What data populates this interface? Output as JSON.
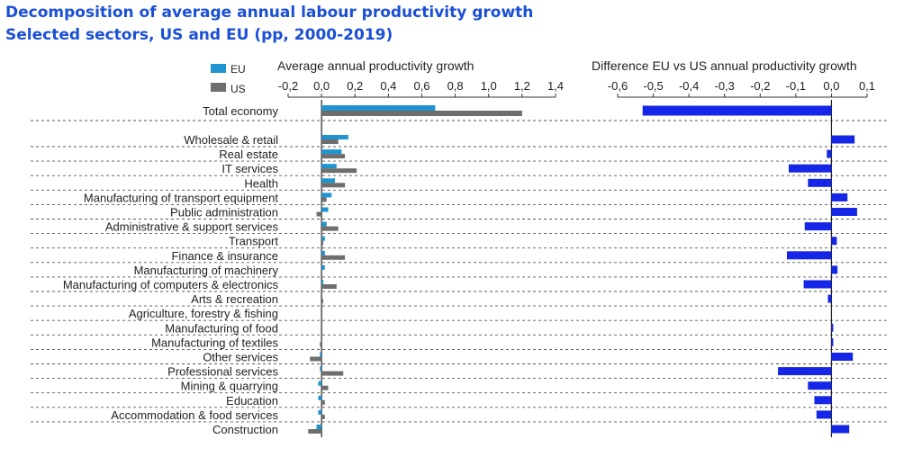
{
  "title": "Decomposition of average annual labour productivity growth",
  "subtitle": "Selected sectors, US and EU (pp, 2000-2019)",
  "colors": {
    "eu": "#1e94d0",
    "us": "#6e6e6e",
    "diff": "#1526e6"
  },
  "chart_data": [
    {
      "type": "bar",
      "orientation": "horizontal",
      "title": "Average annual productivity growth",
      "xlim": [
        -0.2,
        1.4
      ],
      "xticks": [
        "-0,2",
        "0,0",
        "0,2",
        "0,4",
        "0,6",
        "0,8",
        "1,0",
        "1,2",
        "1,4"
      ],
      "xtick_values": [
        -0.2,
        0,
        0.2,
        0.4,
        0.6,
        0.8,
        1.0,
        1.2,
        1.4
      ],
      "legend_position": "top-left",
      "categories": [
        "Total economy",
        "Wholesale & retail",
        "Real estate",
        "IT services",
        "Health",
        "Manufacturing of transport equipment",
        "Public administration",
        "Administrative & support services",
        "Transport",
        "Finance & insurance",
        "Manufacturing of machinery",
        "Manufacturing of computers & electronics",
        "Arts & recreation",
        "Agriculture, forestry & fishing",
        "Manufacturing of food",
        "Manufacturing of textiles",
        "Other services",
        "Professional services",
        "Mining & quarrying",
        "Education",
        "Accommodation & food services",
        "Construction"
      ],
      "series": [
        {
          "name": "EU",
          "values": [
            0.68,
            0.16,
            0.12,
            0.09,
            0.08,
            0.06,
            0.04,
            0.03,
            0.02,
            0.02,
            0.02,
            0.01,
            0.0,
            0.0,
            0.0,
            0.0,
            -0.01,
            -0.01,
            -0.02,
            -0.02,
            -0.02,
            -0.03
          ]
        },
        {
          "name": "US",
          "values": [
            1.2,
            0.1,
            0.14,
            0.21,
            0.14,
            0.03,
            -0.03,
            0.1,
            0.01,
            0.14,
            0.0,
            0.09,
            0.01,
            0.0,
            0.0,
            -0.01,
            -0.07,
            0.13,
            0.04,
            0.02,
            0.02,
            -0.08
          ]
        }
      ]
    },
    {
      "type": "bar",
      "orientation": "horizontal",
      "title": "Difference EU vs US annual productivity growth",
      "xlim": [
        -0.6,
        0.1
      ],
      "xticks": [
        "-0,6",
        "-0,5",
        "-0,4",
        "-0,3",
        "-0,2",
        "-0,1",
        "0,0",
        "0,1"
      ],
      "xtick_values": [
        -0.6,
        -0.5,
        -0.4,
        -0.3,
        -0.2,
        -0.1,
        0,
        0.1
      ],
      "categories": [
        "Total economy",
        "Wholesale & retail",
        "Real estate",
        "IT services",
        "Health",
        "Manufacturing of transport equipment",
        "Public administration",
        "Administrative & support services",
        "Transport",
        "Finance & insurance",
        "Manufacturing of machinery",
        "Manufacturing of computers & electronics",
        "Arts & recreation",
        "Agriculture, forestry & fishing",
        "Manufacturing of food",
        "Manufacturing of textiles",
        "Other services",
        "Professional services",
        "Mining & quarrying",
        "Education",
        "Accommodation & food services",
        "Construction"
      ],
      "values": [
        -0.53,
        0.065,
        -0.013,
        -0.12,
        -0.066,
        0.045,
        0.072,
        -0.075,
        0.015,
        -0.125,
        0.017,
        -0.078,
        -0.01,
        0.0,
        0.005,
        0.005,
        0.06,
        -0.15,
        -0.066,
        -0.048,
        -0.042,
        0.05
      ]
    }
  ]
}
